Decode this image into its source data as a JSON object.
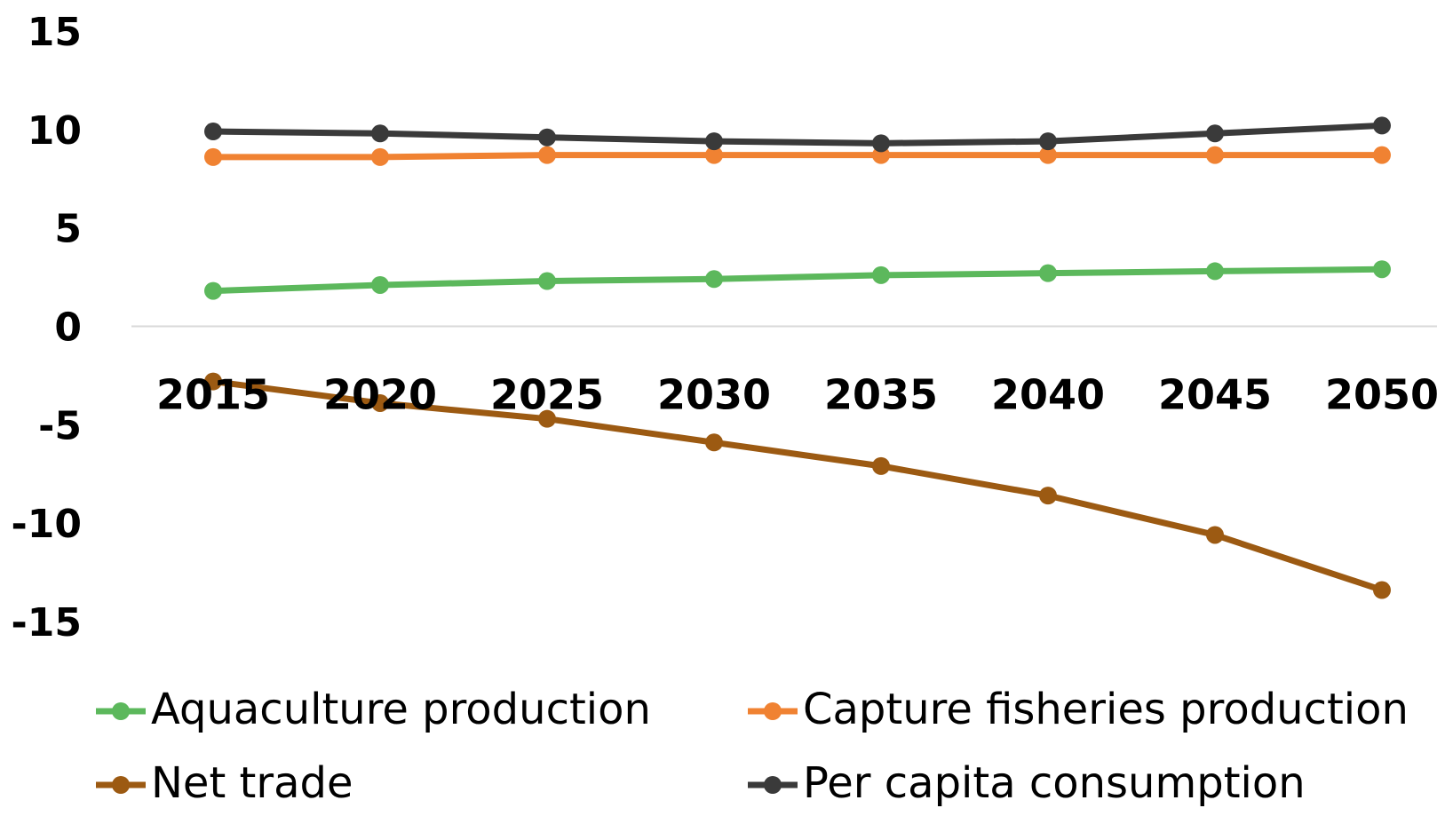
{
  "chart_data": {
    "type": "line",
    "title": "",
    "xlabel": "",
    "ylabel": "",
    "categories": [
      "2015",
      "2020",
      "2025",
      "2030",
      "2035",
      "2040",
      "2045",
      "2050"
    ],
    "ylim": [
      -15,
      15
    ],
    "yticks": [
      15,
      10,
      5,
      0,
      -5,
      -10,
      -15
    ],
    "grid": false,
    "legend_position": "bottom",
    "series": [
      {
        "name": "Aquaculture production",
        "color": "#5cb85c",
        "values": [
          1.8,
          2.1,
          2.3,
          2.4,
          2.6,
          2.7,
          2.8,
          2.9
        ]
      },
      {
        "name": "Capture fisheries production",
        "color": "#f08232",
        "values": [
          8.6,
          8.6,
          8.7,
          8.7,
          8.7,
          8.7,
          8.7,
          8.7
        ]
      },
      {
        "name": "Net trade",
        "color": "#9c5a12",
        "values": [
          -2.8,
          -3.9,
          -4.7,
          -5.9,
          -7.1,
          -8.6,
          -10.6,
          -13.4
        ]
      },
      {
        "name": "Per capita consumption",
        "color": "#3a3a3a",
        "values": [
          9.9,
          9.8,
          9.6,
          9.4,
          9.3,
          9.4,
          9.8,
          10.2
        ]
      }
    ]
  }
}
